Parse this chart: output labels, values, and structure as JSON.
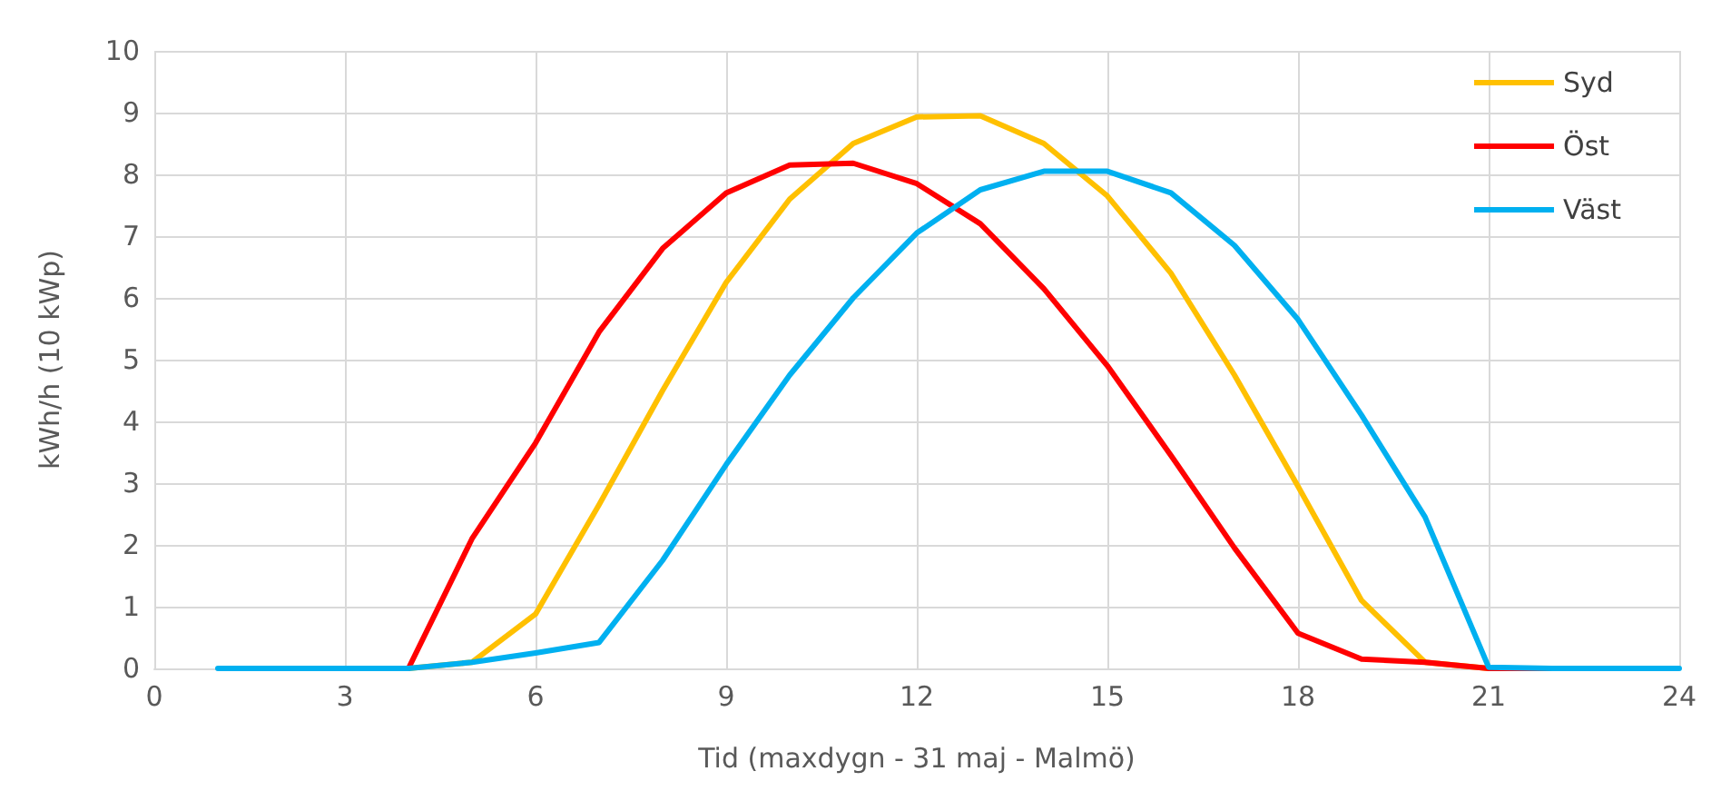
{
  "chart_data": {
    "type": "line",
    "xlabel": "Tid (maxdygn - 31 maj - Malmö)",
    "ylabel": "kWh/h (10 kWp)",
    "x": [
      1,
      2,
      3,
      4,
      5,
      6,
      7,
      8,
      9,
      10,
      11,
      12,
      13,
      14,
      15,
      16,
      17,
      18,
      19,
      20,
      21,
      22,
      23,
      24
    ],
    "series": [
      {
        "name": "Syd",
        "color": "#ffc000",
        "values": [
          null,
          null,
          null,
          0,
          0.1,
          0.88,
          2.65,
          4.5,
          6.25,
          7.6,
          8.5,
          8.93,
          8.95,
          8.5,
          7.65,
          6.4,
          4.75,
          2.95,
          1.1,
          0.1,
          0,
          null,
          null,
          null
        ]
      },
      {
        "name": "Öst",
        "color": "#ff0000",
        "values": [
          null,
          null,
          0,
          0,
          2.1,
          3.65,
          5.45,
          6.8,
          7.7,
          8.15,
          8.18,
          7.85,
          7.2,
          6.15,
          4.9,
          3.45,
          1.95,
          0.57,
          0.15,
          0.1,
          0,
          0,
          null,
          null
        ]
      },
      {
        "name": "Väst",
        "color": "#00b0f0",
        "values": [
          0,
          0,
          0,
          0,
          0.1,
          0.25,
          0.42,
          1.75,
          3.3,
          4.75,
          6,
          7.05,
          7.75,
          8.05,
          8.05,
          7.7,
          6.85,
          5.65,
          4.1,
          2.45,
          0.02,
          0,
          0,
          0
        ]
      }
    ],
    "xlim": [
      0,
      24
    ],
    "xticks": [
      0,
      3,
      6,
      9,
      12,
      15,
      18,
      21,
      24
    ],
    "ylim": [
      0,
      10
    ],
    "yticks": [
      0,
      1,
      2,
      3,
      4,
      5,
      6,
      7,
      8,
      9,
      10
    ],
    "grid": true,
    "legend": "top right",
    "marker": "none",
    "line_style": "solid"
  }
}
